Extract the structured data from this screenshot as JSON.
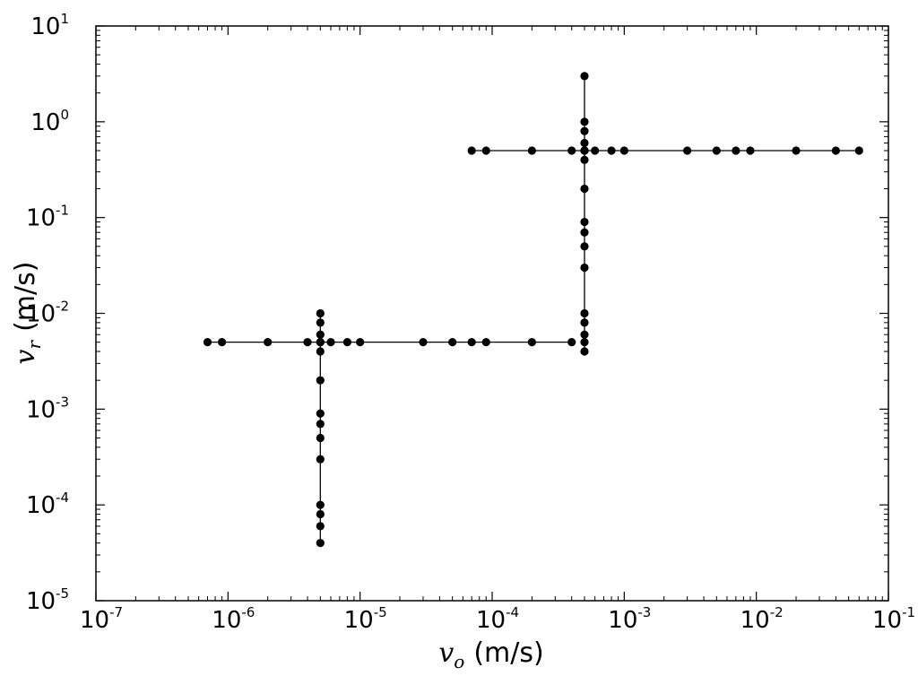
{
  "chart_data": {
    "type": "line",
    "title": "",
    "xscale": "log",
    "yscale": "log",
    "xlim": [
      1e-07,
      0.1
    ],
    "ylim": [
      1e-05,
      10
    ],
    "xlabel": {
      "var": "v",
      "sub": "o",
      "unit": "(m/s)"
    },
    "ylabel": {
      "var": "v",
      "sub": "r",
      "unit": "(m/s)"
    },
    "xticks": [
      {
        "value": 1e-07,
        "base": "10",
        "exp": "-7"
      },
      {
        "value": 1e-06,
        "base": "10",
        "exp": "-6"
      },
      {
        "value": 1e-05,
        "base": "10",
        "exp": "-5"
      },
      {
        "value": 0.0001,
        "base": "10",
        "exp": "-4"
      },
      {
        "value": 0.001,
        "base": "10",
        "exp": "-3"
      },
      {
        "value": 0.01,
        "base": "10",
        "exp": "-2"
      },
      {
        "value": 0.1,
        "base": "10",
        "exp": "-1"
      }
    ],
    "yticks": [
      {
        "value": 1e-05,
        "base": "10",
        "exp": "-5"
      },
      {
        "value": 0.0001,
        "base": "10",
        "exp": "-4"
      },
      {
        "value": 0.001,
        "base": "10",
        "exp": "-3"
      },
      {
        "value": 0.01,
        "base": "10",
        "exp": "-2"
      },
      {
        "value": 0.1,
        "base": "10",
        "exp": "-1"
      },
      {
        "value": 1,
        "base": "10",
        "exp": "0"
      },
      {
        "value": 10,
        "base": "10",
        "exp": "1"
      }
    ],
    "grid": false,
    "legend": "none",
    "marker_color": "#000000",
    "series": [
      {
        "x": [
          7e-07,
          9e-07,
          2e-06,
          4e-06,
          5e-06,
          6e-06,
          8e-06,
          1e-05,
          3e-05,
          5e-05,
          7e-05,
          9e-05,
          0.0002,
          0.0004
        ],
        "y": [
          0.005,
          0.005,
          0.005,
          0.005,
          0.005,
          0.005,
          0.005,
          0.005,
          0.005,
          0.005,
          0.005,
          0.005,
          0.005,
          0.005
        ]
      },
      {
        "x": [
          5e-06,
          5e-06,
          5e-06,
          5e-06,
          5e-06,
          5e-06,
          5e-06,
          5e-06,
          5e-06,
          5e-06,
          5e-06,
          5e-06,
          5e-06,
          5e-06
        ],
        "y": [
          4e-05,
          6e-05,
          8e-05,
          0.0001,
          0.0003,
          0.0005,
          0.0007,
          0.0009,
          0.002,
          0.004,
          0.006,
          0.008,
          0.01,
          0.005
        ]
      },
      {
        "x": [
          0.0005,
          0.0005,
          0.0005,
          0.0005,
          0.0005,
          0.0005,
          0.0005,
          0.0005,
          0.0005,
          0.0005,
          0.0005,
          0.0005,
          0.0005,
          0.0005,
          0.0005,
          0.0005,
          0.0005
        ],
        "y": [
          0.004,
          0.006,
          0.008,
          0.01,
          0.03,
          0.05,
          0.07,
          0.09,
          0.2,
          0.4,
          0.5,
          0.6,
          0.8,
          1,
          3,
          0.005,
          0.5
        ]
      },
      {
        "x": [
          7e-05,
          9e-05,
          0.0002,
          0.0004,
          0.0005,
          0.0006,
          0.0008,
          0.001,
          0.003,
          0.005,
          0.007,
          0.009,
          0.02,
          0.04,
          0.06
        ],
        "y": [
          0.5,
          0.5,
          0.5,
          0.5,
          0.5,
          0.5,
          0.5,
          0.5,
          0.5,
          0.5,
          0.5,
          0.5,
          0.5,
          0.5,
          0.5
        ]
      }
    ]
  }
}
